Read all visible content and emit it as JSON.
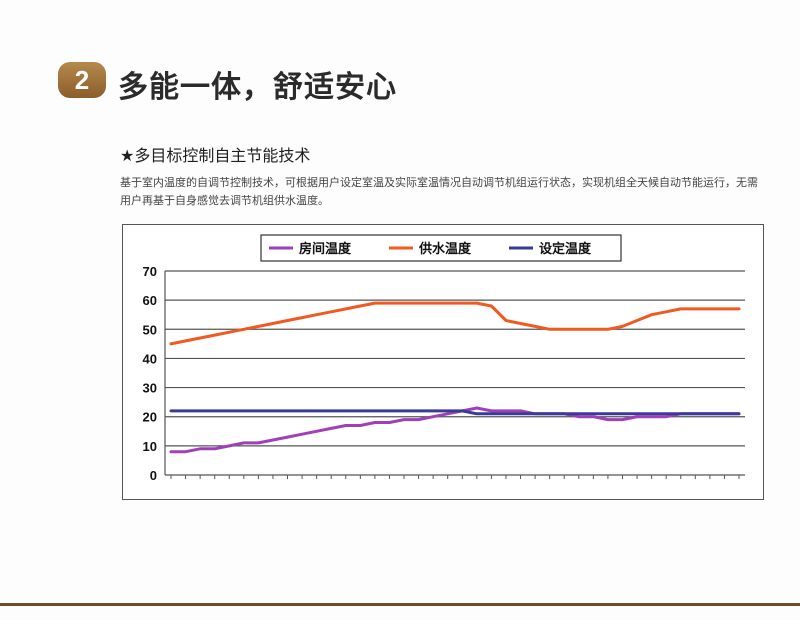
{
  "header": {
    "badge_number": "2",
    "title": "多能一体，舒适安心"
  },
  "feature": {
    "subtitle": "★多目标控制自主节能技术",
    "description": "基于室内温度的自调节控制技术，可根据用户设定室温及实际室温情况自动调节机组运行状态，实现机组全天候自动节能运行，无需用户再基于自身感觉去调节机组供水温度。"
  },
  "chart_data": {
    "type": "line",
    "title": "",
    "xlabel": "",
    "ylabel": "",
    "ylim": [
      0,
      70
    ],
    "yticks": [
      "0",
      "10",
      "20",
      "30",
      "40",
      "50",
      "60",
      "70"
    ],
    "grid": true,
    "legend_position": "top",
    "x": [
      0,
      1,
      2,
      3,
      4,
      5,
      6,
      7,
      8,
      9,
      10,
      11,
      12,
      13,
      14,
      15,
      16,
      17,
      18,
      19,
      20,
      21,
      22,
      23,
      24,
      25,
      26,
      27,
      28,
      29,
      30,
      31,
      32,
      33,
      34,
      35,
      36,
      37,
      38,
      39
    ],
    "series": [
      {
        "name": "房间温度",
        "color": "#a040b8",
        "values": [
          8,
          8,
          9,
          9,
          10,
          11,
          11,
          12,
          13,
          14,
          15,
          16,
          17,
          17,
          18,
          18,
          19,
          19,
          20,
          21,
          22,
          23,
          22,
          22,
          22,
          21,
          21,
          21,
          20,
          20,
          19,
          19,
          20,
          20,
          20,
          21,
          21,
          21,
          21,
          21
        ]
      },
      {
        "name": "供水温度",
        "color": "#f05a20",
        "values": [
          45,
          46,
          47,
          48,
          49,
          50,
          51,
          52,
          53,
          54,
          55,
          56,
          57,
          58,
          59,
          59,
          59,
          59,
          59,
          59,
          59,
          59,
          58,
          53,
          52,
          51,
          50,
          50,
          50,
          50,
          50,
          51,
          53,
          55,
          56,
          57,
          57,
          57,
          57,
          57
        ]
      },
      {
        "name": "设定温度",
        "color": "#3a3a9a",
        "values": [
          22,
          22,
          22,
          22,
          22,
          22,
          22,
          22,
          22,
          22,
          22,
          22,
          22,
          22,
          22,
          22,
          22,
          22,
          22,
          22,
          22,
          21,
          21,
          21,
          21,
          21,
          21,
          21,
          21,
          21,
          21,
          21,
          21,
          21,
          21,
          21,
          21,
          21,
          21,
          21
        ]
      }
    ]
  }
}
